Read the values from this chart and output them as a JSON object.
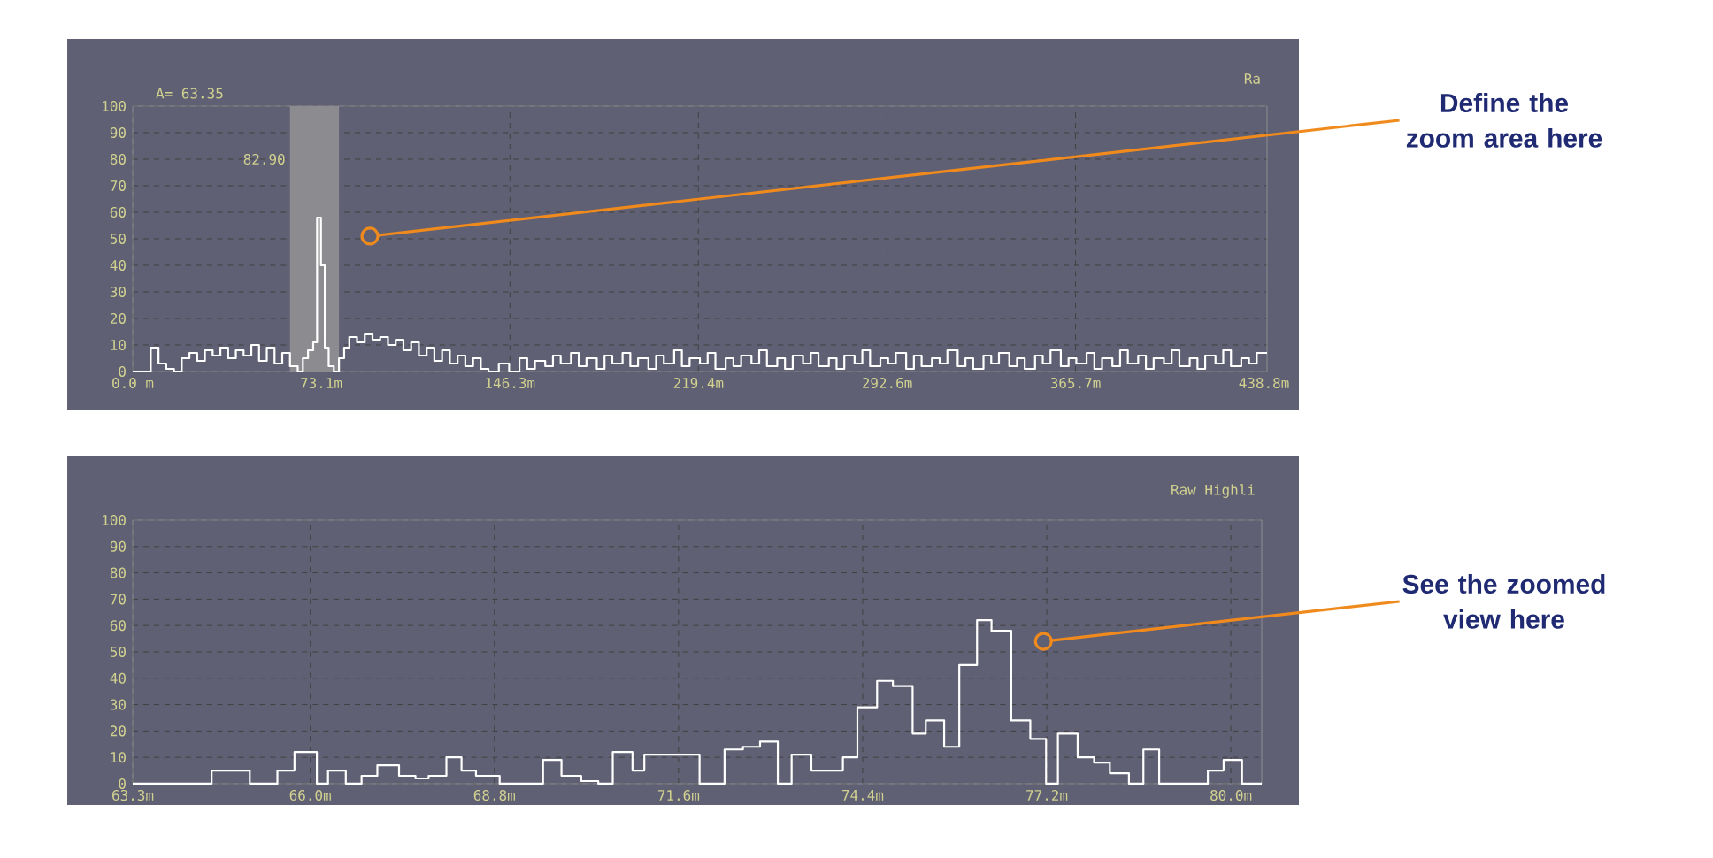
{
  "chart_data": [
    {
      "type": "step",
      "title": "Ra",
      "color": "#ffffff",
      "x": [
        0,
        5,
        7,
        10,
        13,
        16,
        19,
        22,
        25,
        28,
        31,
        34,
        37,
        40,
        43,
        46,
        49,
        52,
        55,
        58,
        61,
        64,
        66,
        68,
        70,
        71.5,
        73,
        74.5,
        76,
        78,
        80,
        82,
        84,
        87,
        90,
        93,
        96,
        99,
        102,
        105,
        108,
        111,
        114,
        117,
        120,
        123,
        126,
        129,
        132,
        135,
        138,
        142,
        146,
        150,
        153,
        156,
        160,
        163,
        166,
        170,
        173,
        176,
        180,
        183,
        186,
        190,
        193,
        196,
        200,
        203,
        206,
        210,
        213,
        216,
        220,
        223,
        226,
        230,
        233,
        236,
        240,
        243,
        246,
        250,
        253,
        256,
        260,
        263,
        266,
        270,
        273,
        276,
        280,
        283,
        286,
        290,
        293,
        296,
        300,
        303,
        306,
        310,
        313,
        316,
        320,
        323,
        326,
        330,
        333,
        336,
        340,
        343,
        346,
        350,
        353,
        356,
        360,
        363,
        366,
        370,
        373,
        376,
        380,
        383,
        386,
        390,
        393,
        396,
        400,
        403,
        406,
        410,
        413,
        416,
        420,
        423,
        426,
        430,
        433,
        436,
        440
      ],
      "values": [
        0,
        0,
        9,
        3,
        1,
        0,
        5,
        7,
        4,
        8,
        6,
        9,
        5,
        8,
        6,
        10,
        4,
        9,
        3,
        7,
        2,
        0,
        5,
        8,
        11,
        58,
        40,
        9,
        2,
        0,
        5,
        9,
        13,
        11,
        14,
        12,
        13,
        10,
        12,
        8,
        11,
        6,
        9,
        4,
        8,
        3,
        6,
        2,
        5,
        1,
        0,
        3,
        0,
        5,
        1,
        4,
        2,
        6,
        3,
        7,
        2,
        5,
        1,
        6,
        3,
        7,
        2,
        5,
        1,
        6,
        3,
        8,
        2,
        5,
        3,
        7,
        1,
        5,
        2,
        6,
        3,
        8,
        2,
        5,
        1,
        6,
        3,
        7,
        2,
        5,
        1,
        6,
        3,
        8,
        2,
        5,
        3,
        7,
        1,
        6,
        2,
        5,
        3,
        8,
        2,
        5,
        1,
        6,
        3,
        7,
        2,
        5,
        1,
        6,
        3,
        8,
        2,
        5,
        3,
        7,
        1,
        5,
        2,
        8,
        3,
        6,
        1,
        5,
        3,
        8,
        2,
        5,
        1,
        6,
        3,
        8,
        2,
        5,
        3,
        7,
        7
      ],
      "xlim": [
        0,
        440
      ],
      "ylim": [
        0,
        100
      ],
      "xticks": [
        {
          "value": 0,
          "label": "0.0 m"
        },
        {
          "value": 73.1,
          "label": "73.1m"
        },
        {
          "value": 146.3,
          "label": "146.3m"
        },
        {
          "value": 219.4,
          "label": "219.4m"
        },
        {
          "value": 292.6,
          "label": "292.6m"
        },
        {
          "value": 365.7,
          "label": "365.7m"
        },
        {
          "value": 438.8,
          "label": "438.8m"
        }
      ],
      "yticks": [
        0,
        10,
        20,
        30,
        40,
        50,
        60,
        70,
        80,
        90,
        100
      ],
      "grid": true,
      "bands": [
        {
          "axis": "x",
          "from": 61,
          "to": 80,
          "color": "#8c8c90"
        }
      ],
      "annotations": [
        "A= 63.35",
        "82.90",
        {
          "text": "Define the zoom area here",
          "x": 92,
          "y": 51
        }
      ]
    },
    {
      "type": "step",
      "title": "Raw Highli",
      "color": "#ffffff",
      "x": [
        63.3,
        64.5,
        65.08,
        65.5,
        65.76,
        66.1,
        66.27,
        66.54,
        66.78,
        67.02,
        67.35,
        67.6,
        67.8,
        68.07,
        68.3,
        68.52,
        68.88,
        69.54,
        69.82,
        70.12,
        70.38,
        70.6,
        70.9,
        71.08,
        71.92,
        72.3,
        72.58,
        72.84,
        73.11,
        73.32,
        73.62,
        74.1,
        74.32,
        74.62,
        74.86,
        75.16,
        75.36,
        75.64,
        75.87,
        76.14,
        76.36,
        76.66,
        76.95,
        77.19,
        77.37,
        77.67,
        77.92,
        78.16,
        78.45,
        78.67,
        78.91,
        79.65,
        79.89,
        80.17,
        80.47
      ],
      "values": [
        0,
        5,
        0,
        5,
        12,
        0,
        5,
        0,
        3,
        7,
        3,
        2,
        3,
        10,
        5,
        3,
        0,
        9,
        3,
        1,
        0,
        12,
        5,
        11,
        0,
        13,
        14,
        16,
        0,
        11,
        5,
        10,
        29,
        39,
        37,
        19,
        24,
        14,
        45,
        62,
        58,
        24,
        17,
        0,
        19,
        10,
        8,
        4,
        0,
        13,
        0,
        5,
        9,
        0,
        0
      ],
      "xlim": [
        63.3,
        80.47
      ],
      "ylim": [
        0,
        100
      ],
      "xticks": [
        {
          "value": 63.3,
          "label": "63.3m"
        },
        {
          "value": 66.0,
          "label": "66.0m"
        },
        {
          "value": 68.8,
          "label": "68.8m"
        },
        {
          "value": 71.6,
          "label": "71.6m"
        },
        {
          "value": 74.4,
          "label": "74.4m"
        },
        {
          "value": 77.2,
          "label": "77.2m"
        },
        {
          "value": 80.0,
          "label": "80.0m"
        }
      ],
      "yticks": [
        0,
        10,
        20,
        30,
        40,
        50,
        60,
        70,
        80,
        90,
        100
      ],
      "grid": true,
      "annotations": [
        {
          "text": "See the zoomed view here",
          "x": 77.15,
          "y": 54
        }
      ]
    }
  ]
}
